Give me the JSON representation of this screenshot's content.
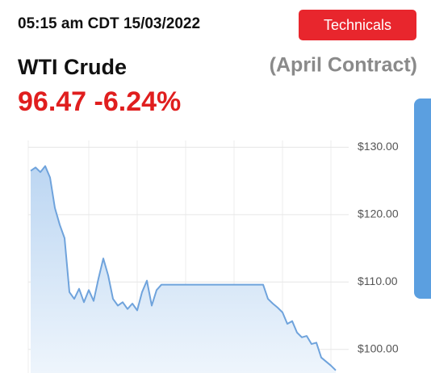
{
  "header": {
    "timestamp": "05:15 am CDT 15/03/2022",
    "button": "Technicals",
    "name": "WTI Crude",
    "contract": "(April Contract)",
    "price": "96.47",
    "change": "-6.24%"
  },
  "chart_data": {
    "type": "area",
    "color": "#6fa3dc",
    "categories": [
      null,
      null,
      null,
      null,
      null,
      null,
      null,
      null,
      null,
      null,
      null,
      null,
      null,
      null,
      null,
      null,
      null,
      null,
      null,
      null,
      null,
      null,
      null,
      null,
      null,
      null,
      null,
      null,
      null,
      null,
      null,
      null,
      null,
      null,
      null,
      null,
      null,
      null,
      null,
      null,
      null,
      null,
      null,
      null,
      null,
      null,
      null,
      null,
      null,
      null,
      null,
      null,
      null,
      null,
      null,
      null,
      null,
      null,
      null,
      null,
      null,
      null,
      null,
      null
    ],
    "values": [
      126.5,
      127,
      126.3,
      127.2,
      125.5,
      121,
      118.5,
      116.5,
      108.5,
      107.5,
      109,
      107,
      108.8,
      107.2,
      110.5,
      113.5,
      111,
      107.5,
      106.5,
      107,
      106,
      106.8,
      105.8,
      108.5,
      110.2,
      106.5,
      108.8,
      109.6,
      109.6,
      109.6,
      109.6,
      109.6,
      109.6,
      109.6,
      109.6,
      109.6,
      109.6,
      109.6,
      109.6,
      109.6,
      109.6,
      109.6,
      109.6,
      109.6,
      109.6,
      109.6,
      109.6,
      109.6,
      109.6,
      107.5,
      106.8,
      106.2,
      105.5,
      103.8,
      104.2,
      102.5,
      101.8,
      102,
      100.8,
      101,
      98.8,
      98.2,
      97.6,
      96.9
    ],
    "ylim": [
      96.5,
      131
    ],
    "yticks": [
      {
        "value": 100,
        "label": "$100.00"
      },
      {
        "value": 110,
        "label": "$110.00"
      },
      {
        "value": 120,
        "label": "$120.00"
      },
      {
        "value": 130,
        "label": "$130.00"
      }
    ],
    "grid": true
  }
}
